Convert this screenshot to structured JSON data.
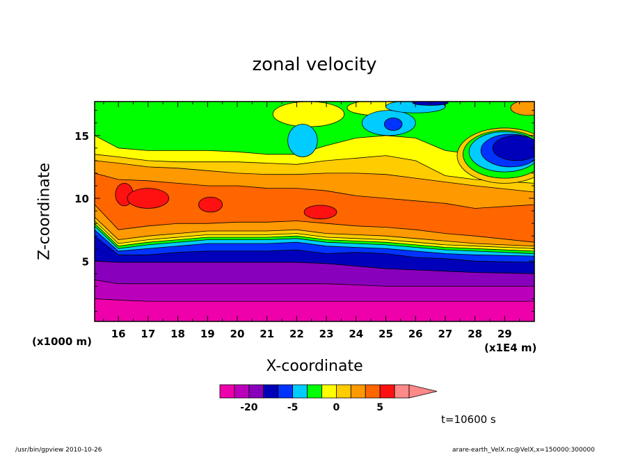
{
  "chart_data": {
    "type": "heatmap",
    "title": "zonal velocity",
    "xlabel": "X-coordinate",
    "ylabel": "Z-coordinate",
    "x_unit_label": "(x1E4 m)",
    "y_unit_label": "(x1000 m)",
    "xlim": [
      15.2,
      30.0
    ],
    "ylim": [
      0.2,
      17.7
    ],
    "x_ticks": [
      16,
      17,
      18,
      19,
      20,
      21,
      22,
      23,
      24,
      25,
      26,
      27,
      28,
      29
    ],
    "x_tick_labels": [
      "16",
      "17",
      "18",
      "19",
      "20",
      "21",
      "22",
      "23",
      "24",
      "25",
      "26",
      "27",
      "28",
      "29"
    ],
    "y_ticks": [
      5,
      10,
      15
    ],
    "y_tick_labels": [
      "5",
      "10",
      "15"
    ],
    "colorbar": {
      "levels": [
        -30,
        -25,
        -20,
        -15,
        -10,
        -5,
        -3,
        -1,
        0,
        1,
        3,
        5,
        10,
        15
      ],
      "colors": [
        "#ee00aa",
        "#bb00bb",
        "#8800bb",
        "#0000bb",
        "#0033ff",
        "#00ccff",
        "#00ff00",
        "#ffff00",
        "#ffcc00",
        "#ff9900",
        "#ff6600",
        "#ff1111",
        "#ff8888"
      ],
      "tick_labels": [
        {
          "level": -20,
          "label": "-20"
        },
        {
          "level": -5,
          "label": "-5"
        },
        {
          "level": 0,
          "label": "0"
        },
        {
          "level": 5,
          "label": "5"
        }
      ],
      "extend": "max"
    },
    "layers": [
      {
        "z_top": [
          2.0,
          1.9,
          1.8,
          1.8,
          1.8,
          1.8,
          1.8,
          1.8,
          1.8,
          1.8,
          1.8,
          1.8,
          1.8,
          1.8,
          1.8
        ],
        "color_index": 0
      },
      {
        "z_top": [
          3.5,
          3.2,
          3.2,
          3.2,
          3.2,
          3.2,
          3.2,
          3.2,
          3.2,
          3.1,
          3.0,
          3.0,
          3.0,
          3.0,
          3.0
        ],
        "color_index": 1
      },
      {
        "z_top": [
          5.0,
          4.9,
          4.9,
          4.9,
          4.9,
          4.9,
          4.9,
          4.9,
          4.8,
          4.6,
          4.4,
          4.3,
          4.2,
          4.1,
          4.0
        ],
        "color_index": 2
      },
      {
        "z_top": [
          7.0,
          5.5,
          5.5,
          5.7,
          5.8,
          5.8,
          5.8,
          5.9,
          5.6,
          5.7,
          5.6,
          5.3,
          5.2,
          5.0,
          4.9
        ],
        "color_index": 3
      },
      {
        "z_top": [
          7.5,
          5.8,
          6.0,
          6.2,
          6.4,
          6.4,
          6.4,
          6.5,
          6.2,
          6.1,
          6.0,
          5.8,
          5.6,
          5.5,
          5.4
        ],
        "color_index": 4
      },
      {
        "z_top": [
          7.8,
          6.0,
          6.3,
          6.5,
          6.7,
          6.7,
          6.7,
          6.8,
          6.5,
          6.4,
          6.3,
          6.1,
          5.9,
          5.8,
          5.6
        ],
        "color_index": 5
      },
      {
        "z_top": [
          8.0,
          6.2,
          6.5,
          6.7,
          6.9,
          6.9,
          6.9,
          7.0,
          6.7,
          6.6,
          6.5,
          6.3,
          6.1,
          6.0,
          5.8
        ],
        "color_index": 6
      },
      {
        "z_top": [
          8.2,
          6.4,
          6.7,
          6.9,
          7.1,
          7.1,
          7.1,
          7.2,
          6.9,
          6.8,
          6.7,
          6.5,
          6.3,
          6.2,
          6.0
        ],
        "color_index": 7
      },
      {
        "z_top": [
          8.5,
          6.7,
          7.0,
          7.2,
          7.4,
          7.4,
          7.4,
          7.5,
          7.2,
          7.1,
          7.0,
          6.8,
          6.6,
          6.4,
          6.2
        ],
        "color_index": 8
      },
      {
        "z_top": [
          9.5,
          7.5,
          7.8,
          8.0,
          8.0,
          8.1,
          8.1,
          8.2,
          8.0,
          7.8,
          7.7,
          7.5,
          7.2,
          7.0,
          6.5
        ],
        "color_index": 9
      },
      {
        "z_top": [
          12.0,
          11.5,
          11.4,
          11.2,
          11.0,
          11.0,
          10.8,
          10.8,
          10.6,
          10.2,
          10.0,
          9.8,
          9.6,
          9.2,
          9.5
        ],
        "color_index": 10
      },
      {
        "z_top": [
          13.0,
          12.8,
          12.5,
          12.4,
          12.2,
          12.0,
          11.9,
          11.9,
          12.0,
          12.0,
          11.9,
          11.6,
          11.3,
          11.0,
          10.5
        ],
        "color_index": 9
      },
      {
        "z_top": [
          13.5,
          13.3,
          13.0,
          12.9,
          12.9,
          12.9,
          12.8,
          12.7,
          13.0,
          13.2,
          13.4,
          13.0,
          11.8,
          11.5,
          11.2
        ],
        "color_index": 8
      },
      {
        "z_top": [
          15.0,
          14.0,
          13.8,
          13.8,
          13.8,
          13.7,
          13.5,
          13.5,
          14.2,
          14.8,
          15.0,
          14.8,
          13.8,
          13.5,
          13.2
        ],
        "color_index": 7
      },
      {
        "z_top": [
          17.7,
          17.7,
          17.7,
          17.7,
          17.7,
          17.7,
          17.7,
          17.7,
          17.7,
          17.7,
          17.7,
          17.7,
          17.7,
          17.7,
          17.7
        ],
        "color_index": 6
      }
    ],
    "layer_x": [
      15.2,
      16.0,
      17.0,
      18.0,
      19.0,
      20.0,
      21.0,
      22.0,
      23.0,
      24.0,
      25.0,
      26.0,
      27.0,
      28.0,
      30.0
    ],
    "blobs": [
      {
        "cx": 16.2,
        "cy": 10.3,
        "rx": 0.3,
        "ry": 0.9,
        "color_index": 11
      },
      {
        "cx": 17.0,
        "cy": 10.0,
        "rx": 0.7,
        "ry": 0.8,
        "color_index": 11
      },
      {
        "cx": 19.1,
        "cy": 9.5,
        "rx": 0.4,
        "ry": 0.6,
        "color_index": 11
      },
      {
        "cx": 22.8,
        "cy": 8.9,
        "rx": 0.55,
        "ry": 0.55,
        "color_index": 11
      },
      {
        "cx": 22.4,
        "cy": 16.7,
        "rx": 1.2,
        "ry": 1.0,
        "color_index": 7
      },
      {
        "cx": 24.7,
        "cy": 17.2,
        "rx": 1.0,
        "ry": 0.6,
        "color_index": 7
      },
      {
        "cx": 22.2,
        "cy": 14.6,
        "rx": 0.5,
        "ry": 1.3,
        "color_index": 5
      },
      {
        "cx": 25.1,
        "cy": 16.0,
        "rx": 0.9,
        "ry": 1.0,
        "color_index": 5
      },
      {
        "cx": 25.25,
        "cy": 15.9,
        "rx": 0.3,
        "ry": 0.5,
        "color_index": 4
      },
      {
        "cx": 26.0,
        "cy": 17.3,
        "rx": 1.0,
        "ry": 0.5,
        "color_index": 5
      },
      {
        "cx": 26.5,
        "cy": 17.6,
        "rx": 0.6,
        "ry": 0.2,
        "color_index": 3
      },
      {
        "cx": 29.0,
        "cy": 13.4,
        "rx": 1.6,
        "ry": 2.2,
        "color_index": 8
      },
      {
        "cx": 29.0,
        "cy": 13.5,
        "rx": 1.4,
        "ry": 1.9,
        "color_index": 6
      },
      {
        "cx": 29.0,
        "cy": 13.7,
        "rx": 1.2,
        "ry": 1.6,
        "color_index": 5
      },
      {
        "cx": 29.2,
        "cy": 13.8,
        "rx": 1.0,
        "ry": 1.3,
        "color_index": 4
      },
      {
        "cx": 29.4,
        "cy": 14.0,
        "rx": 0.8,
        "ry": 1.0,
        "color_index": 3
      },
      {
        "cx": 29.8,
        "cy": 17.2,
        "rx": 0.6,
        "ry": 0.6,
        "color_index": 9
      }
    ]
  },
  "annotations": {
    "time": "t=10600 s",
    "footer_left": "/usr/bin/gpview   2010-10-26",
    "footer_right": "arare-earth_VelX.nc@VelX,x=150000:300000"
  },
  "colors": {
    "frame": "#000000",
    "background": "#ffffff"
  }
}
